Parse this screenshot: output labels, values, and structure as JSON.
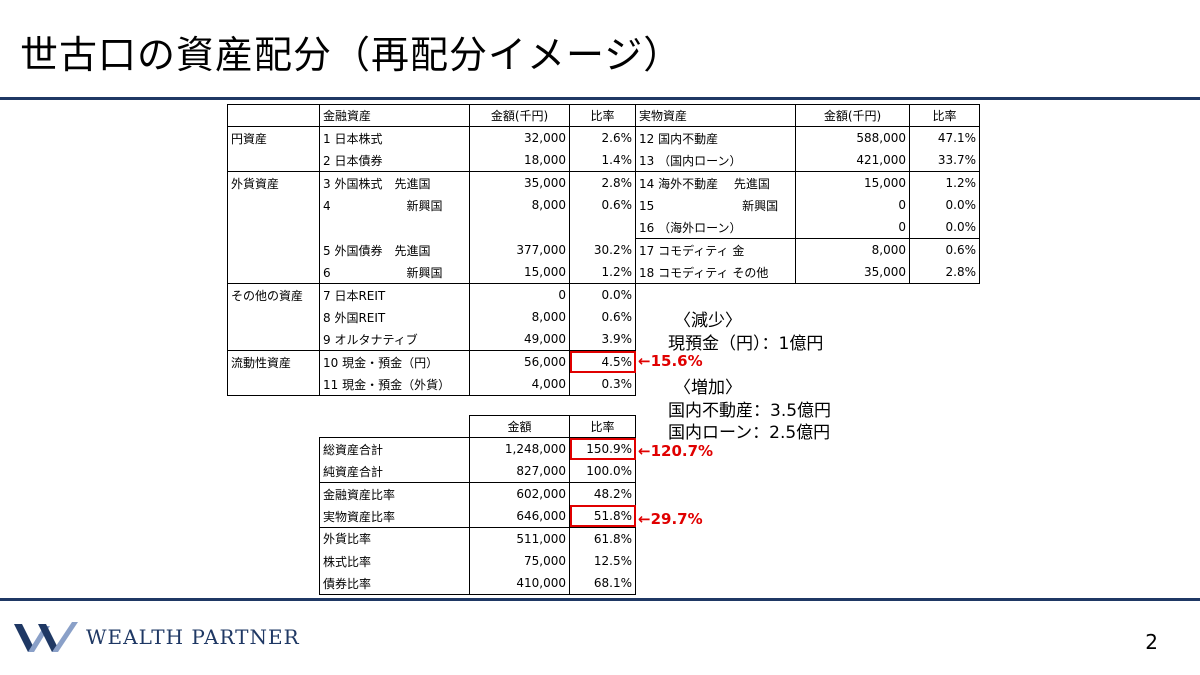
{
  "title": "世古口の資産配分（再配分イメージ）",
  "main_table": {
    "headers": [
      "",
      "金融資産",
      "金額(千円)",
      "比率",
      "実物資産",
      "金額(千円)",
      "比率"
    ],
    "rows": [
      [
        "円資産",
        "1 日本株式",
        "32,000",
        "2.6%",
        "12 国内不動産",
        "588,000",
        "47.1%"
      ],
      [
        "",
        "2 日本債券",
        "18,000",
        "1.4%",
        "13 （国内ローン）",
        "421,000",
        "33.7%"
      ],
      [
        "外貨資産",
        "3 外国株式　先進国",
        "35,000",
        "2.8%",
        "14 海外不動産　 先進国",
        "15,000",
        "1.2%"
      ],
      [
        "",
        "4　　　　　　 新興国",
        "8,000",
        "0.6%",
        "15　　　　　　　 新興国",
        "0",
        "0.0%"
      ],
      [
        "",
        "",
        "",
        "",
        "16 （海外ローン）",
        "0",
        "0.0%"
      ],
      [
        "",
        "5 外国債券　先進国",
        "377,000",
        "30.2%",
        "17 コモディティ 金",
        "8,000",
        "0.6%"
      ],
      [
        "",
        "6　　　　　　 新興国",
        "15,000",
        "1.2%",
        "18 コモディティ その他",
        "35,000",
        "2.8%"
      ],
      [
        "その他の資産",
        "7 日本REIT",
        "0",
        "0.0%",
        "",
        "",
        ""
      ],
      [
        "",
        "8 外国REIT",
        "8,000",
        "0.6%",
        "",
        "",
        ""
      ],
      [
        "",
        "9 オルタナティブ",
        "49,000",
        "3.9%",
        "",
        "",
        ""
      ],
      [
        "流動性資産",
        "10 現金・預金（円）",
        "56,000",
        "4.5%",
        "",
        "",
        ""
      ],
      [
        "",
        "11 現金・預金（外貨）",
        "4,000",
        "0.3%",
        "",
        "",
        ""
      ]
    ]
  },
  "summary_table": {
    "headers": [
      "",
      "金額",
      "比率"
    ],
    "rows": [
      [
        "総資産合計",
        "1,248,000",
        "150.9%"
      ],
      [
        "純資産合計",
        "827,000",
        "100.0%"
      ],
      [
        "金融資産比率",
        "602,000",
        "48.2%"
      ],
      [
        "実物資産比率",
        "646,000",
        "51.8%"
      ],
      [
        "外貨比率",
        "511,000",
        "61.8%"
      ],
      [
        "株式比率",
        "75,000",
        "12.5%"
      ],
      [
        "債券比率",
        "410,000",
        "68.1%"
      ]
    ]
  },
  "callouts": {
    "cash": "←15.6%",
    "total": "←120.7%",
    "real": "←29.7%"
  },
  "notes": {
    "decrease_heading": "〈減少〉",
    "decrease_1": "現預金（円）：1億円",
    "increase_heading": "〈増加〉",
    "increase_1": "国内不動産：3.5億円",
    "increase_2": "国内ローン：2.5億円"
  },
  "footer": {
    "logo_text": "WEALTH PARTNER",
    "page_number": "2"
  },
  "colors": {
    "accent_navy": "#1f3864",
    "highlight_red": "#e00000"
  }
}
